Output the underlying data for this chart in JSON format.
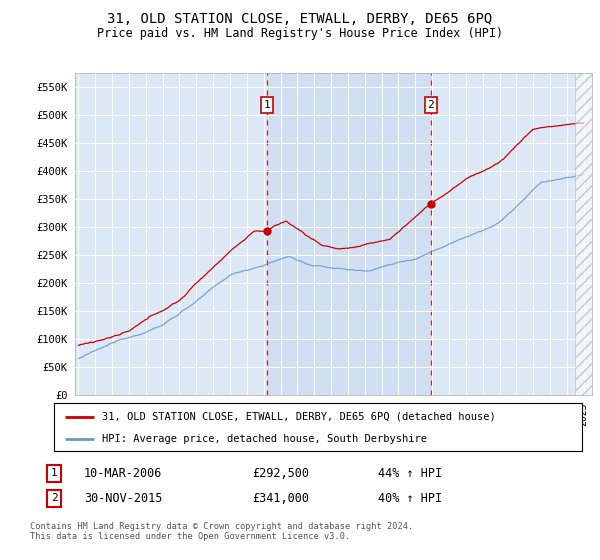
{
  "title": "31, OLD STATION CLOSE, ETWALL, DERBY, DE65 6PQ",
  "subtitle": "Price paid vs. HM Land Registry's House Price Index (HPI)",
  "plot_bg_color": "#dce8f5",
  "plot_bg_color2": "#f0f5fa",
  "ylim": [
    0,
    575000
  ],
  "yticks": [
    0,
    50000,
    100000,
    150000,
    200000,
    250000,
    300000,
    350000,
    400000,
    450000,
    500000,
    550000
  ],
  "ytick_labels": [
    "£0",
    "£50K",
    "£100K",
    "£150K",
    "£200K",
    "£250K",
    "£300K",
    "£350K",
    "£400K",
    "£450K",
    "£500K",
    "£550K"
  ],
  "x_start_year": 1995,
  "x_end_year": 2025,
  "red_line_label": "31, OLD STATION CLOSE, ETWALL, DERBY, DE65 6PQ (detached house)",
  "blue_line_label": "HPI: Average price, detached house, South Derbyshire",
  "sale1_date": "10-MAR-2006",
  "sale1_price": "£292,500",
  "sale1_hpi": "44% ↑ HPI",
  "sale1_year": 2006.19,
  "sale1_price_val": 292500,
  "sale2_date": "30-NOV-2015",
  "sale2_price": "£341,000",
  "sale2_hpi": "40% ↑ HPI",
  "sale2_year": 2015.92,
  "sale2_price_val": 341000,
  "footer": "Contains HM Land Registry data © Crown copyright and database right 2024.\nThis data is licensed under the Open Government Licence v3.0.",
  "hpi_color": "#6699cc",
  "price_color": "#cc0000",
  "dashed_line_color": "#cc0000",
  "shaded_fill_color": "#ddeeff"
}
